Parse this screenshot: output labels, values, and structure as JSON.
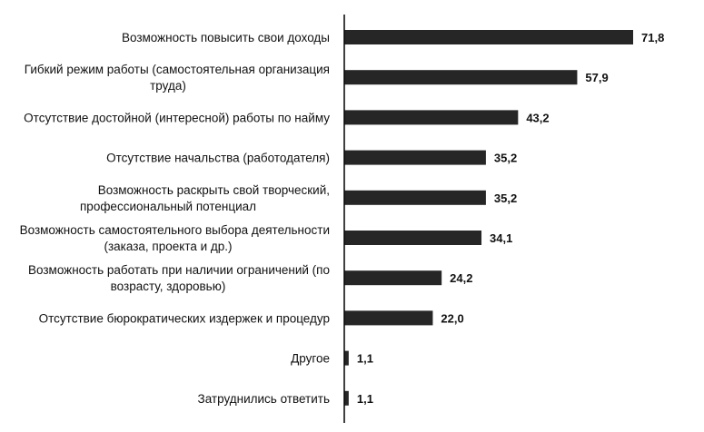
{
  "chart_data": {
    "type": "bar",
    "orientation": "horizontal",
    "categories": [
      [
        "Возможность повысить свои доходы"
      ],
      [
        "Гибкий режим работы (самостоятельная организация",
        "труда)"
      ],
      [
        "Отсутствие достойной (интересной) работы по найму"
      ],
      [
        "Отсутствие начальства (работодателя)"
      ],
      [
        "Возможность раскрыть свой творческий,",
        "профессиональный потенциал"
      ],
      [
        "Возможность самостоятельного выбора деятельности",
        "(заказа, проекта и др.)"
      ],
      [
        "Возможность работать при наличии ограничений (по",
        "возрасту, здоровью)"
      ],
      [
        "Отсутствие бюрократических издержек и процедур"
      ],
      [
        "Другое"
      ],
      [
        "Затруднились ответить"
      ]
    ],
    "values": [
      71.8,
      57.9,
      43.2,
      35.2,
      35.2,
      34.1,
      24.2,
      22.0,
      1.1,
      1.1
    ],
    "value_labels": [
      "71,8",
      "57,9",
      "43,2",
      "35,2",
      "35,2",
      "34,1",
      "24,2",
      "22,0",
      "1,1",
      "1,1"
    ],
    "xlim": [
      0,
      80
    ],
    "grid": false,
    "legend": "none",
    "bar_color": "#262626",
    "axis_color": "#000000"
  }
}
